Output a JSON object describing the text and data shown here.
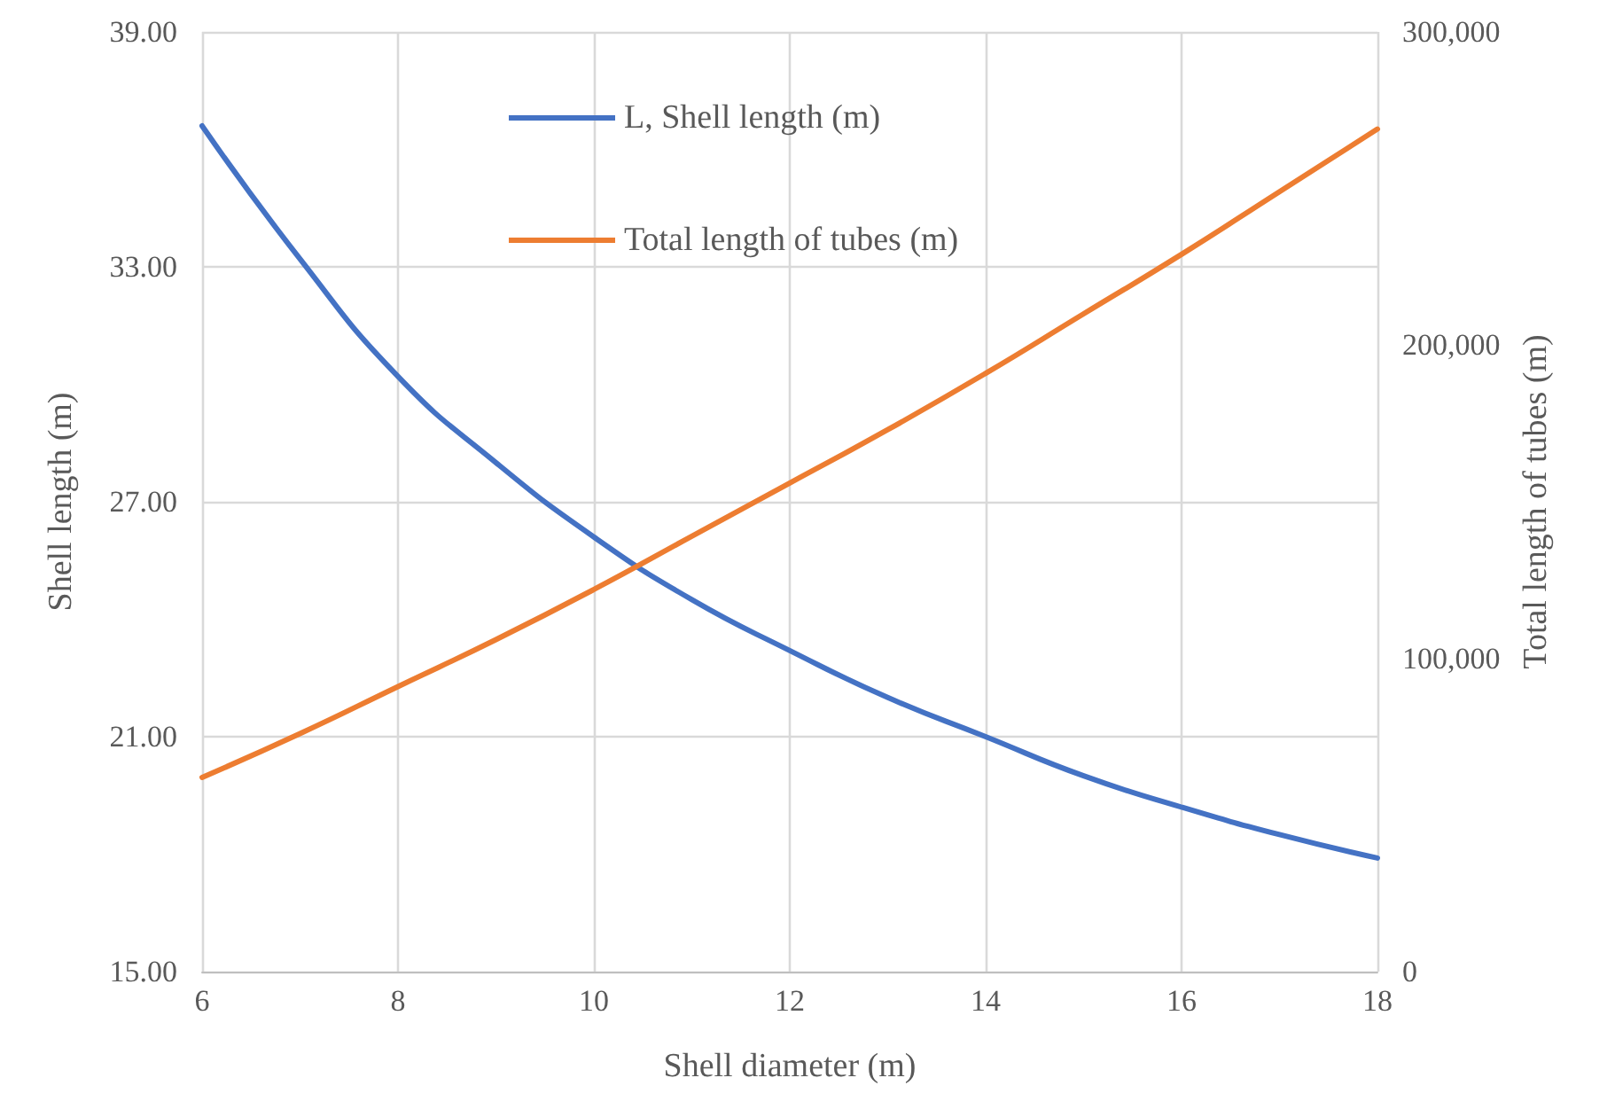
{
  "chart_data": {
    "type": "line",
    "xlabel": "Shell diameter (m)",
    "ylabel": "Shell length (m)",
    "y2label": "Total length of tubes (m)",
    "x": [
      6,
      7,
      8,
      9,
      10,
      11,
      12,
      13,
      14,
      15,
      16,
      17,
      18
    ],
    "series": [
      {
        "name": "L, Shell length (m)",
        "color": "#4472c4",
        "values": [
          36.6,
          33.2,
          30.2,
          28.0,
          26.1,
          24.5,
          23.2,
          22.0,
          21.0,
          20.0,
          19.2,
          18.5,
          17.9
        ]
      },
      {
        "name": "Total length of tubes (m)",
        "color": "#ed7d31",
        "axis": "y2",
        "values": [
          62000,
          76000,
          91000,
          106000,
          122000,
          139000,
          156000,
          173000,
          191000,
          210000,
          229000,
          249000,
          269000
        ]
      }
    ],
    "xlim": [
      6,
      18
    ],
    "xticks": [
      6,
      8,
      10,
      12,
      14,
      16,
      18
    ],
    "ylim": [
      15,
      39
    ],
    "yticks": [
      {
        "value": 15,
        "label": "15.00"
      },
      {
        "value": 21,
        "label": "21.00"
      },
      {
        "value": 27,
        "label": "27.00"
      },
      {
        "value": 33,
        "label": "33.00"
      },
      {
        "value": 39,
        "label": "39.00"
      }
    ],
    "y2lim": [
      0,
      300000
    ],
    "y2ticks": [
      0,
      {
        "value": 100000,
        "label": "100,000"
      },
      {
        "value": 200000,
        "label": "200,000"
      },
      {
        "value": 300000,
        "label": "300,000"
      }
    ],
    "grid": true,
    "legend": "top",
    "marker": "none",
    "line_style": "solid"
  }
}
